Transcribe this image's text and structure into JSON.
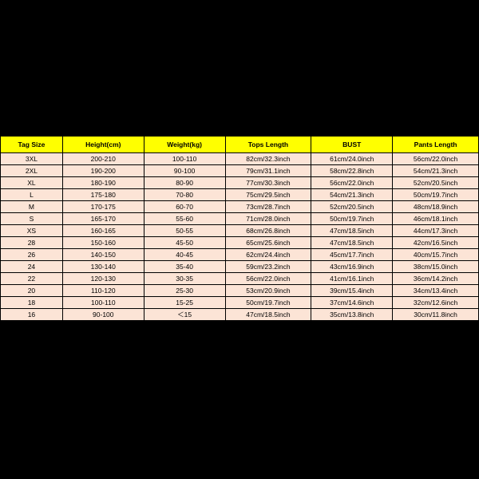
{
  "table": {
    "type": "table",
    "background_color": "#000000",
    "sheet_background": "#ffffff",
    "header_background": "#ffff00",
    "row_background": "#fce4d6",
    "border_color": "#000000",
    "header_fontsize": 8.5,
    "cell_fontsize": 8.5,
    "columns": [
      "Tag Size",
      "Height(cm)",
      "Weight(kg)",
      "Tops Length",
      "BUST",
      "Pants Length"
    ],
    "col_widths_pct": [
      13,
      17,
      17,
      18,
      17,
      18
    ],
    "rows": [
      [
        "3XL",
        "200-210",
        "100-110",
        "82cm/32.3inch",
        "61cm/24.0inch",
        "56cm/22.0inch"
      ],
      [
        "2XL",
        "190-200",
        "90-100",
        "79cm/31.1inch",
        "58cm/22.8inch",
        "54cm/21.3inch"
      ],
      [
        "XL",
        "180-190",
        "80-90",
        "77cm/30.3inch",
        "56cm/22.0inch",
        "52cm/20.5inch"
      ],
      [
        "L",
        "175-180",
        "70-80",
        "75cm/29.5inch",
        "54cm/21.3inch",
        "50cm/19.7inch"
      ],
      [
        "M",
        "170-175",
        "60-70",
        "73cm/28.7inch",
        "52cm/20.5inch",
        "48cm/18.9inch"
      ],
      [
        "S",
        "165-170",
        "55-60",
        "71cm/28.0inch",
        "50cm/19.7inch",
        "46cm/18.1inch"
      ],
      [
        "XS",
        "160-165",
        "50-55",
        "68cm/26.8inch",
        "47cm/18.5inch",
        "44cm/17.3inch"
      ],
      [
        "28",
        "150-160",
        "45-50",
        "65cm/25.6inch",
        "47cm/18.5inch",
        "42cm/16.5inch"
      ],
      [
        "26",
        "140-150",
        "40-45",
        "62cm/24.4inch",
        "45cm/17.7inch",
        "40cm/15.7inch"
      ],
      [
        "24",
        "130-140",
        "35-40",
        "59cm/23.2inch",
        "43cm/16.9inch",
        "38cm/15.0inch"
      ],
      [
        "22",
        "120-130",
        "30-35",
        "56cm/22.0inch",
        "41cm/16.1inch",
        "36cm/14.2inch"
      ],
      [
        "20",
        "110-120",
        "25-30",
        "53cm/20.9inch",
        "39cm/15.4inch",
        "34cm/13.4inch"
      ],
      [
        "18",
        "100-110",
        "15-25",
        "50cm/19.7inch",
        "37cm/14.6inch",
        "32cm/12.6inch"
      ],
      [
        "16",
        "90-100",
        "＜15",
        "47cm/18.5inch",
        "35cm/13.8inch",
        "30cm/11.8inch"
      ]
    ]
  }
}
